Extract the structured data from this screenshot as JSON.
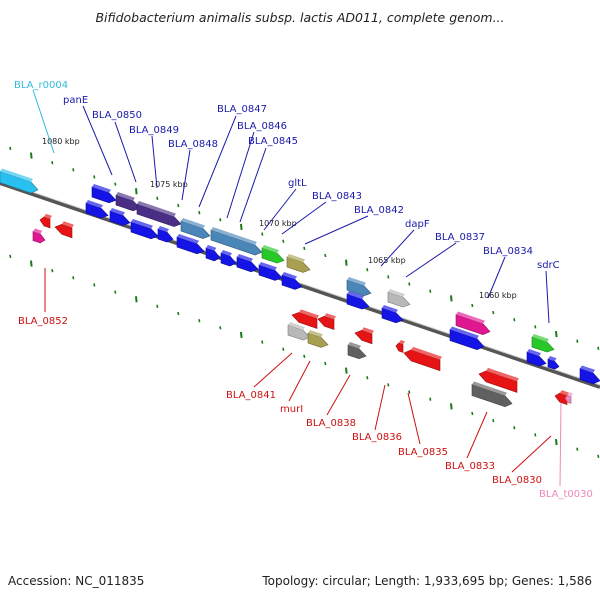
{
  "title": "Bifidobacterium animalis subsp. lactis AD011, complete genom...",
  "footer": {
    "accession": "Accession: NC_011835",
    "summary": "Topology: circular; Length: 1,933,695 bp; Genes: 1,586"
  },
  "colors": {
    "backbone": "#8a8a8a",
    "tick": "#1a7a1a",
    "label_top": "#1a1aaa",
    "label_bottom": "#cc1111",
    "label_rna": "#33bbdd",
    "label_trna": "#ee88bb",
    "gene_blue": "#1414e6",
    "gene_red": "#e61414",
    "gene_navy": "#4a2e86",
    "gene_steel": "#4a86b8",
    "gene_olive": "#a8a050",
    "gene_green": "#28c828",
    "gene_gray": "#606060",
    "gene_light": "#b8b8b8",
    "gene_magenta": "#e01890",
    "gene_cyan": "#28c0f0"
  },
  "scale_labels": [
    {
      "text": "1080 kbp"
    },
    {
      "text": "1075 kbp"
    },
    {
      "text": "1070 kbp"
    },
    {
      "text": "1065 kbp"
    },
    {
      "text": "1060 kbp"
    }
  ],
  "labels_top": [
    {
      "text": "BLA_r0004",
      "kind": "rna"
    },
    {
      "text": "panE",
      "kind": "top"
    },
    {
      "text": "BLA_0850",
      "kind": "top"
    },
    {
      "text": "BLA_0849",
      "kind": "top"
    },
    {
      "text": "BLA_0848",
      "kind": "top"
    },
    {
      "text": "BLA_0847",
      "kind": "top"
    },
    {
      "text": "BLA_0846",
      "kind": "top"
    },
    {
      "text": "BLA_0845",
      "kind": "top"
    },
    {
      "text": "gltL",
      "kind": "top"
    },
    {
      "text": "BLA_0843",
      "kind": "top"
    },
    {
      "text": "BLA_0842",
      "kind": "top"
    },
    {
      "text": "dapF",
      "kind": "top"
    },
    {
      "text": "BLA_0837",
      "kind": "top"
    },
    {
      "text": "BLA_0834",
      "kind": "top"
    },
    {
      "text": "sdrC",
      "kind": "top"
    }
  ],
  "labels_bottom": [
    {
      "text": "BLA_0852",
      "kind": "bottom"
    },
    {
      "text": "BLA_0841",
      "kind": "bottom"
    },
    {
      "text": "murI",
      "kind": "bottom"
    },
    {
      "text": "BLA_0838",
      "kind": "bottom"
    },
    {
      "text": "BLA_0836",
      "kind": "bottom"
    },
    {
      "text": "BLA_0835",
      "kind": "bottom"
    },
    {
      "text": "BLA_0833",
      "kind": "bottom"
    },
    {
      "text": "BLA_0830",
      "kind": "bottom"
    },
    {
      "text": "BLA_t0030",
      "kind": "trna"
    }
  ]
}
